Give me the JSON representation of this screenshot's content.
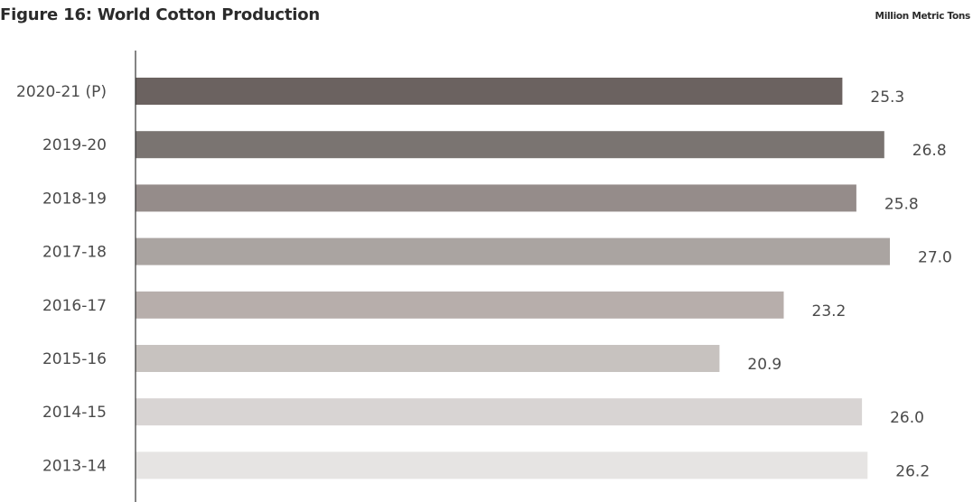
{
  "header": {
    "title": "Figure 16: World Cotton Production",
    "unit_label": "Million Metric Tons"
  },
  "chart_data": {
    "type": "bar",
    "orientation": "horizontal",
    "title": "Figure 16: World Cotton Production",
    "xlabel": "",
    "ylabel": "",
    "unit": "Million Metric Tons",
    "categories": [
      "2020-21 (P)",
      "2019-20",
      "2018-19",
      "2017-18",
      "2016-17",
      "2015-16",
      "2014-15",
      "2013-14"
    ],
    "values": [
      25.3,
      26.8,
      25.8,
      27.0,
      23.2,
      20.9,
      26.0,
      26.2
    ],
    "value_labels": [
      "25.3",
      "26.8",
      "25.8",
      "27.0",
      "23.2",
      "20.9",
      "26.0",
      "26.2"
    ],
    "bar_colors": [
      "#6b6260",
      "#7a7471",
      "#958c8a",
      "#aaa4a1",
      "#b7aeab",
      "#c7c2bf",
      "#d8d4d3",
      "#e6e4e3"
    ],
    "xlim": [
      0,
      27.0
    ],
    "grid": false,
    "legend": "none"
  },
  "colors": {
    "axis": "#333333",
    "text": "#4a4a4a"
  }
}
